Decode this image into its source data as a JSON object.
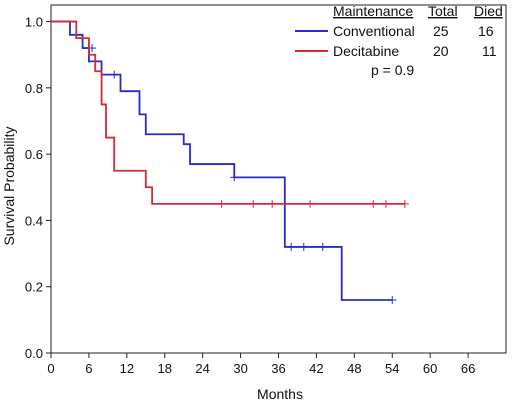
{
  "chart_data": {
    "type": "line",
    "subtype": "kaplan-meier step survival curve",
    "title": "",
    "xlabel": "Months",
    "ylabel": "Survival Probability",
    "xlim": [
      0,
      72
    ],
    "ylim": [
      0,
      1.05
    ],
    "x_ticks": [
      "0",
      "6",
      "12",
      "18",
      "24",
      "30",
      "36",
      "42",
      "48",
      "54",
      "60",
      "66"
    ],
    "x_tick_values": [
      0,
      6,
      12,
      18,
      24,
      30,
      36,
      42,
      48,
      54,
      60,
      66
    ],
    "y_ticks": [
      "0.0",
      "0.2",
      "0.4",
      "0.6",
      "0.8",
      "1.0"
    ],
    "y_tick_values": [
      0,
      0.2,
      0.4,
      0.6,
      0.8,
      1.0
    ],
    "grid": false,
    "legend_position": "top-right",
    "legend": {
      "header": [
        "Maintenance",
        "Total",
        "Died"
      ],
      "pvalue": "p = 0.9"
    },
    "series": [
      {
        "name": "Conventional",
        "color": "#2a2ad0",
        "total": "25",
        "died": "16",
        "steps": [
          [
            0,
            1.0
          ],
          [
            3,
            0.96
          ],
          [
            5,
            0.92
          ],
          [
            6,
            0.88
          ],
          [
            8,
            0.84
          ],
          [
            11,
            0.79
          ],
          [
            14,
            0.72
          ],
          [
            15,
            0.66
          ],
          [
            21,
            0.63
          ],
          [
            22,
            0.57
          ],
          [
            29,
            0.53
          ],
          [
            37,
            0.32
          ],
          [
            46,
            0.16
          ],
          [
            54,
            0.16
          ]
        ],
        "censored": [
          [
            6.5,
            0.92
          ],
          [
            10,
            0.84
          ],
          [
            29,
            0.53
          ],
          [
            38,
            0.32
          ],
          [
            40,
            0.32
          ],
          [
            43,
            0.32
          ],
          [
            54,
            0.16
          ]
        ]
      },
      {
        "name": "Decitabine",
        "color": "#d42a3a",
        "total": "20",
        "died": "11",
        "steps": [
          [
            0,
            1.0
          ],
          [
            4,
            0.95
          ],
          [
            6,
            0.9
          ],
          [
            7,
            0.85
          ],
          [
            8,
            0.75
          ],
          [
            8.7,
            0.65
          ],
          [
            10,
            0.55
          ],
          [
            15,
            0.5
          ],
          [
            16,
            0.45
          ],
          [
            56,
            0.45
          ]
        ],
        "censored": [
          [
            27,
            0.45
          ],
          [
            32,
            0.45
          ],
          [
            35,
            0.45
          ],
          [
            41,
            0.45
          ],
          [
            51,
            0.45
          ],
          [
            53,
            0.45
          ],
          [
            56,
            0.45
          ]
        ]
      }
    ]
  }
}
